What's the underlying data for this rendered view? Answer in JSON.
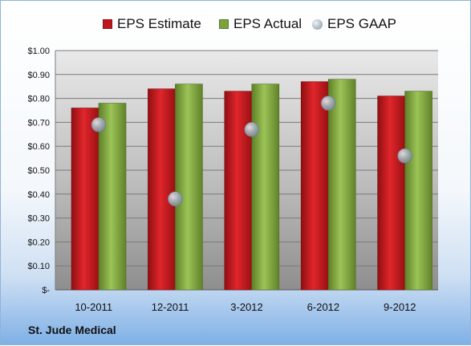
{
  "company_label": "St. Jude Medical",
  "chart_data": {
    "type": "bar",
    "categories": [
      "10-2011",
      "12-2011",
      "3-2012",
      "6-2012",
      "9-2012"
    ],
    "series": [
      {
        "name": "EPS Estimate",
        "values": [
          0.76,
          0.84,
          0.83,
          0.87,
          0.81
        ],
        "color": "#c0161b"
      },
      {
        "name": "EPS Actual",
        "values": [
          0.78,
          0.86,
          0.86,
          0.88,
          0.83
        ],
        "color": "#7da23d"
      },
      {
        "name": "EPS GAAP",
        "values": [
          0.69,
          0.38,
          0.67,
          0.78,
          0.56
        ],
        "color": "#9aa5b0",
        "marker": "circle"
      }
    ],
    "ylim": [
      0,
      1.0
    ],
    "yticks": [
      {
        "value": 0,
        "label": "$-"
      },
      {
        "value": 0.1,
        "label": "$0.10"
      },
      {
        "value": 0.2,
        "label": "$0.20"
      },
      {
        "value": 0.3,
        "label": "$0.30"
      },
      {
        "value": 0.4,
        "label": "$0.40"
      },
      {
        "value": 0.5,
        "label": "$0.50"
      },
      {
        "value": 0.6,
        "label": "$0.60"
      },
      {
        "value": 0.7,
        "label": "$0.70"
      },
      {
        "value": 0.8,
        "label": "$0.80"
      },
      {
        "value": 0.9,
        "label": "$0.90"
      },
      {
        "value": 1.0,
        "label": "$1.00"
      }
    ],
    "grid": true,
    "legend_position": "top"
  }
}
